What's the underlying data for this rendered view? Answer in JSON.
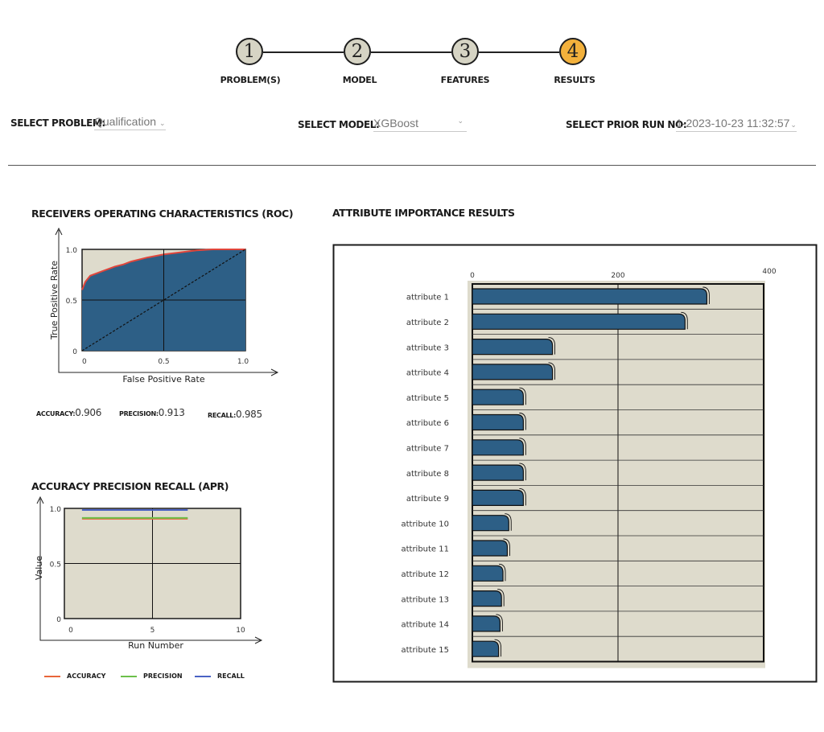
{
  "stepper": {
    "steps": [
      {
        "number": "1",
        "label": "PROBLEM(S)",
        "active": false
      },
      {
        "number": "2",
        "label": "MODEL",
        "active": false
      },
      {
        "number": "3",
        "label": "FEATURES",
        "active": false
      },
      {
        "number": "4",
        "label": "RESULTS",
        "active": true
      }
    ],
    "active_color": "#f3b13c",
    "inactive_color": "#d6d4c4"
  },
  "selectors": {
    "problem": {
      "label": "SELECT PROBLEM:",
      "value": "Qualification"
    },
    "model": {
      "label": "SELECT MODEL:",
      "value": "XGBoost"
    },
    "prior_run": {
      "label": "SELECT PRIOR RUN NO:",
      "value": "1-2023-10-23 11:32:57"
    }
  },
  "roc": {
    "title": "RECEIVERS OPERATING CHARACTERISTICS (ROC)",
    "metrics": [
      {
        "label": "ACCURACY:",
        "value": "0.906"
      },
      {
        "label": "PRECISION:",
        "value": "0.913"
      },
      {
        "label": "RECALL:",
        "value": "0.985"
      }
    ]
  },
  "apr": {
    "title": "ACCURACY PRECISION RECALL (APR)",
    "legend": [
      {
        "label": "ACCURACY",
        "color": "#e8663a"
      },
      {
        "label": "PRECISION",
        "color": "#6cc04a"
      },
      {
        "label": "RECALL",
        "color": "#4a62c4"
      }
    ]
  },
  "attr": {
    "title": "ATTRIBUTE IMPORTANCE RESULTS"
  },
  "chart_data": [
    {
      "type": "line",
      "title": "RECEIVERS OPERATING CHARACTERISTICS (ROC)",
      "xlabel": "False Positive Rate",
      "ylabel": "True Positive Rate",
      "xlim": [
        0,
        1.0
      ],
      "ylim": [
        0,
        1.0
      ],
      "x_ticks": [
        "0",
        "0.5",
        "1.0"
      ],
      "y_ticks": [
        "0",
        "0.5",
        "1.0"
      ],
      "grid": true,
      "series": [
        {
          "x": [
            0,
            0.0,
            0.02,
            0.05,
            0.1,
            0.15,
            0.2,
            0.25,
            0.3,
            0.4,
            0.5,
            0.6,
            0.7,
            0.8,
            0.9,
            1.0
          ],
          "y": [
            0,
            0.6,
            0.68,
            0.74,
            0.77,
            0.8,
            0.83,
            0.85,
            0.88,
            0.92,
            0.95,
            0.97,
            0.99,
            1.0,
            1.0,
            1.0
          ]
        },
        {
          "x": [
            0,
            1.0
          ],
          "y": [
            0,
            1.0
          ]
        }
      ],
      "colors": {
        "fill": "#2d5f86",
        "curve": "#e0463c",
        "background": "#dedbcc"
      }
    },
    {
      "type": "line",
      "title": "ACCURACY PRECISION RECALL (APR)",
      "xlabel": "Run Number",
      "ylabel": "Value",
      "xlim": [
        0,
        10
      ],
      "ylim": [
        0,
        1.0
      ],
      "x_ticks": [
        "0",
        "5",
        "10"
      ],
      "y_ticks": [
        "0",
        "0.5",
        "1.0"
      ],
      "grid": true,
      "series": [
        {
          "name": "ACCURACY",
          "x": [
            1,
            7
          ],
          "y": [
            0.906,
            0.906
          ]
        },
        {
          "name": "PRECISION",
          "x": [
            1,
            7
          ],
          "y": [
            0.913,
            0.913
          ]
        },
        {
          "name": "RECALL",
          "x": [
            1,
            7
          ],
          "y": [
            0.985,
            0.985
          ]
        }
      ]
    },
    {
      "type": "bar",
      "orientation": "horizontal",
      "title": "ATTRIBUTE IMPORTANCE RESULTS",
      "categories": [
        "attribute 1",
        "attribute 2",
        "attribute 3",
        "attribute 4",
        "attribute 5",
        "attribute 6",
        "attribute 7",
        "attribute 8",
        "attribute 9",
        "attribute 10",
        "attribute 11",
        "attribute 12",
        "attribute 13",
        "attribute 14",
        "attribute 15"
      ],
      "values": [
        322,
        292,
        110,
        110,
        70,
        70,
        70,
        70,
        70,
        50,
        48,
        42,
        40,
        38,
        36
      ],
      "xlim": [
        0,
        400
      ],
      "x_ticks": [
        "0",
        "200",
        "400"
      ],
      "grid": true,
      "colors": {
        "bar": "#2d5f86",
        "background": "#dedbcc"
      }
    }
  ]
}
